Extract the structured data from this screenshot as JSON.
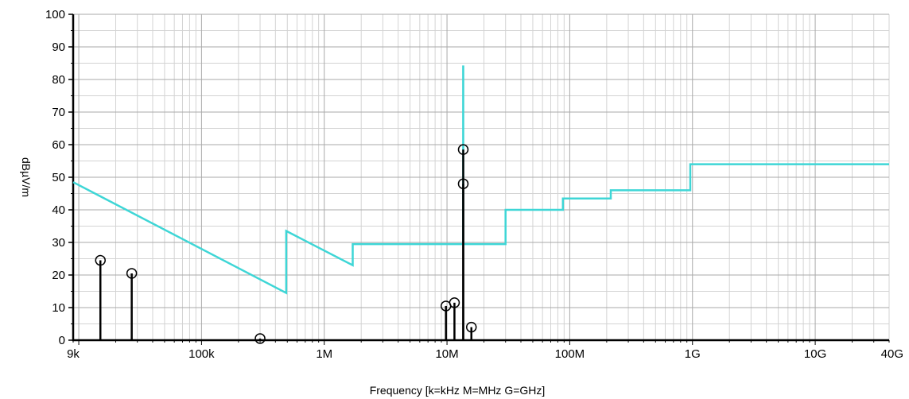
{
  "chart_data": {
    "type": "line",
    "title": "",
    "xlabel": "Frequency [k=kHz M=MHz G=GHz]",
    "ylabel": "dBµV/m",
    "x_scale": "log",
    "xlim": [
      9000,
      40000000000
    ],
    "ylim": [
      0,
      100
    ],
    "grid": true,
    "y_ticks": [
      0,
      10,
      20,
      30,
      40,
      50,
      60,
      70,
      80,
      90,
      100
    ],
    "x_ticks": [
      {
        "value": 9000,
        "label": "9k"
      },
      {
        "value": 100000,
        "label": "100k"
      },
      {
        "value": 1000000,
        "label": "1M"
      },
      {
        "value": 10000000,
        "label": "10M"
      },
      {
        "value": 100000000,
        "label": "100M"
      },
      {
        "value": 1000000000,
        "label": "1G"
      },
      {
        "value": 10000000000,
        "label": "10G"
      },
      {
        "value": 40000000000,
        "label": "40G"
      }
    ],
    "limit_line": {
      "color": "#3ed6d6",
      "points": [
        [
          9000,
          48.5
        ],
        [
          490000,
          14.5
        ],
        [
          490000,
          33.5
        ],
        [
          1705000,
          23
        ],
        [
          1705000,
          29.5
        ],
        [
          13553000,
          29.5
        ],
        [
          13553000,
          84
        ],
        [
          13567000,
          84
        ],
        [
          13567000,
          29.5
        ],
        [
          30000000,
          29.5
        ],
        [
          30000000,
          40
        ],
        [
          88000000,
          40
        ],
        [
          88000000,
          43.5
        ],
        [
          216000000,
          43.5
        ],
        [
          216000000,
          46
        ],
        [
          960000000,
          46
        ],
        [
          960000000,
          54
        ],
        [
          40000000000,
          54
        ]
      ]
    },
    "peaks": {
      "color": "#000000",
      "points": [
        [
          15000,
          24.5
        ],
        [
          27000,
          20.5
        ],
        [
          300000,
          0.5
        ],
        [
          9800000,
          10.5
        ],
        [
          11500000,
          11.5
        ],
        [
          13560000,
          58.5
        ],
        [
          13560000,
          48
        ],
        [
          15800000,
          4
        ]
      ]
    }
  }
}
